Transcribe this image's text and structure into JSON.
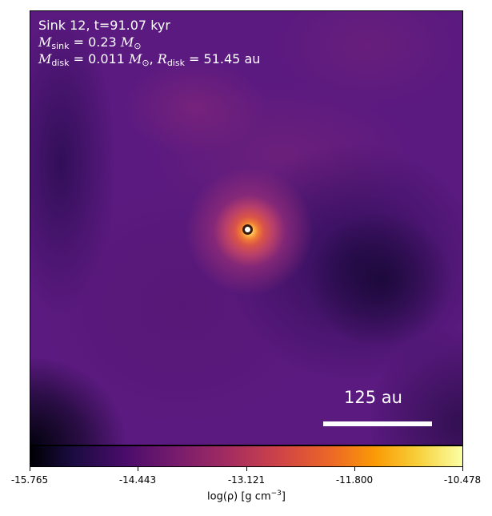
{
  "annotation": {
    "title": "Sink 12, t=91.07 kyr",
    "m_sink_label": "M",
    "m_sink_sub": "sink",
    "m_sink_value": " = 0.23 ",
    "m_sink_unit": "M",
    "m_sink_unit_sub": "⊙",
    "m_disk_label": "M",
    "m_disk_sub": "disk",
    "m_disk_value": " = 0.011 ",
    "m_disk_unit": "M",
    "m_disk_unit_sub": "⊙",
    "sep": ", ",
    "r_disk_label": "R",
    "r_disk_sub": "disk",
    "r_disk_value": " = 51.45 au"
  },
  "scalebar": {
    "label": "125 au"
  },
  "colorbar": {
    "colormap": "inferno",
    "range": [
      -15.765,
      -10.478
    ],
    "tick_labels": [
      "-15.765",
      "-14.443",
      "-13.121",
      "-11.800",
      "-10.478"
    ],
    "label_main": "log(ρ) [g cm",
    "label_exp": "−3",
    "label_end": "]"
  },
  "colors": {
    "annotation_text": "#ffffff",
    "scalebar": "#ffffff",
    "sink_marker_fill": "#ffffff"
  }
}
